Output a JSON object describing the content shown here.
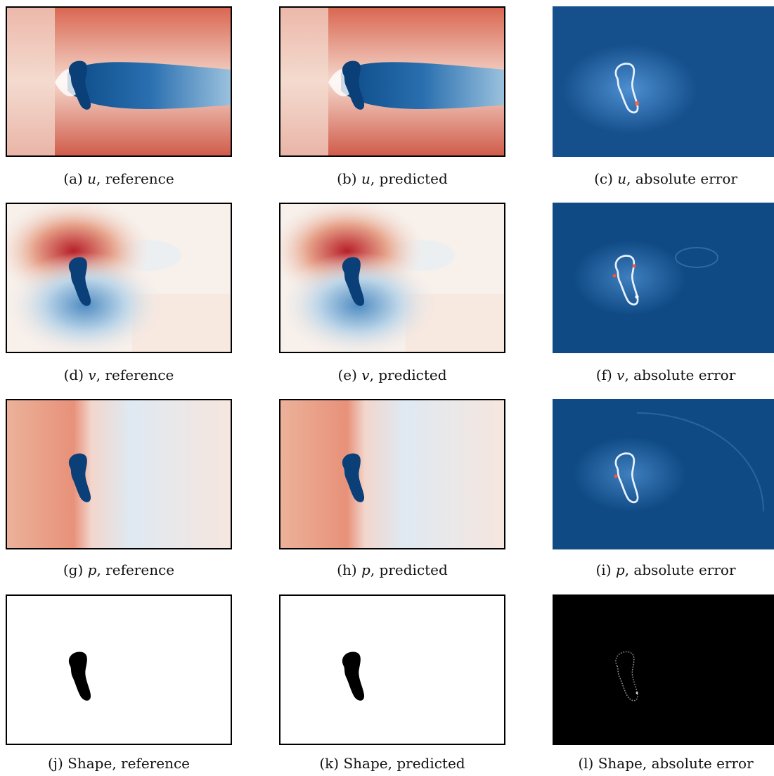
{
  "figure": {
    "panels": [
      {
        "id": "a",
        "letter": "(a)",
        "var": "u",
        "label": ", reference"
      },
      {
        "id": "b",
        "letter": "(b)",
        "var": "u",
        "label": ", predicted"
      },
      {
        "id": "c",
        "letter": "(c)",
        "var": "u",
        "label": ", absolute error"
      },
      {
        "id": "d",
        "letter": "(d)",
        "var": "v",
        "label": ", reference"
      },
      {
        "id": "e",
        "letter": "(e)",
        "var": "v",
        "label": ", predicted"
      },
      {
        "id": "f",
        "letter": "(f)",
        "var": "v",
        "label": ", absolute error"
      },
      {
        "id": "g",
        "letter": "(g)",
        "var": "p",
        "label": ", reference"
      },
      {
        "id": "h",
        "letter": "(h)",
        "var": "p",
        "label": ", predicted"
      },
      {
        "id": "i",
        "letter": "(i)",
        "var": "p",
        "label": ", absolute error"
      },
      {
        "id": "j",
        "letter": "(j)",
        "var": "",
        "label": "Shape, reference"
      },
      {
        "id": "k",
        "letter": "(k)",
        "var": "",
        "label": "Shape, predicted"
      },
      {
        "id": "l",
        "letter": "(l)",
        "var": "",
        "label": "Shape, absolute error"
      }
    ]
  },
  "colors": {
    "red": "#c8443b",
    "pale": "#f6ece6",
    "blue": "#0b4a86",
    "error_bg": "#0f4a84",
    "shape_fill": "#000000"
  }
}
